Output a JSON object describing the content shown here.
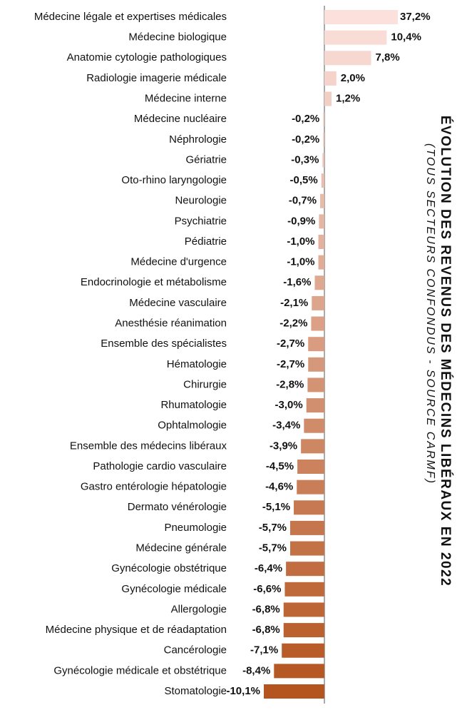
{
  "chart_data": {
    "type": "hbar",
    "title": "ÉVOLUTION DES REVENUS DES MÉDECINS LIBÉRAUX EN 2022",
    "subtitle": "(TOUS SECTEURS CONFONDUS - SOURCE CARMF)",
    "categories": [
      "Médecine légale et expertises médicales",
      "Médecine biologique",
      "Anatomie cytologie pathologiques",
      "Radiologie imagerie médicale",
      "Médecine interne",
      "Médecine nucléaire",
      "Néphrologie",
      "Gériatrie",
      "Oto-rhino laryngologie",
      "Neurologie",
      "Psychiatrie",
      "Pédiatrie",
      "Médecine d'urgence",
      "Endocrinologie et métabolisme",
      "Médecine vasculaire",
      "Anesthésie réanimation",
      "Ensemble des spécialistes",
      "Hématologie",
      "Chirurgie",
      "Rhumatologie",
      "Ophtalmologie",
      "Ensemble des médecins libéraux",
      "Pathologie cardio vasculaire",
      "Gastro entérologie hépatologie",
      "Dermato vénérologie",
      "Pneumologie",
      "Médecine générale",
      "Gynécologie obstétrique",
      "Gynécologie médicale",
      "Allergologie",
      "Médecine physique et de réadaptation",
      "Cancérologie",
      "Gynécologie médicale et obstétrique",
      "Stomatologie"
    ],
    "values": [
      37.2,
      10.4,
      7.8,
      2.0,
      1.2,
      -0.2,
      -0.2,
      -0.3,
      -0.5,
      -0.7,
      -0.9,
      -1.0,
      -1.0,
      -1.6,
      -2.1,
      -2.2,
      -2.7,
      -2.7,
      -2.8,
      -3.0,
      -3.4,
      -3.9,
      -4.5,
      -4.6,
      -5.1,
      -5.7,
      -5.7,
      -6.4,
      -6.6,
      -6.8,
      -6.8,
      -7.1,
      -8.4,
      -10.1
    ],
    "value_labels": [
      "37,2%",
      "10,4%",
      "7,8%",
      "2,0%",
      "1,2%",
      "-0,2%",
      "-0,2%",
      "-0,3%",
      "-0,5%",
      "-0,7%",
      "-0,9%",
      "-1,0%",
      "-1,0%",
      "-1,6%",
      "-2,1%",
      "-2,2%",
      "-2,7%",
      "-2,7%",
      "-2,8%",
      "-3,0%",
      "-3,4%",
      "-3,9%",
      "-4,5%",
      "-4,6%",
      "-5,1%",
      "-5,7%",
      "-5,7%",
      "-6,4%",
      "-6,6%",
      "-6,8%",
      "-6,8%",
      "-7,1%",
      "-8,4%",
      "-10,1%"
    ],
    "color_range": [
      "#fbe0dc",
      "#b4541e"
    ],
    "xlim": [
      -10.1,
      11.9
    ]
  }
}
